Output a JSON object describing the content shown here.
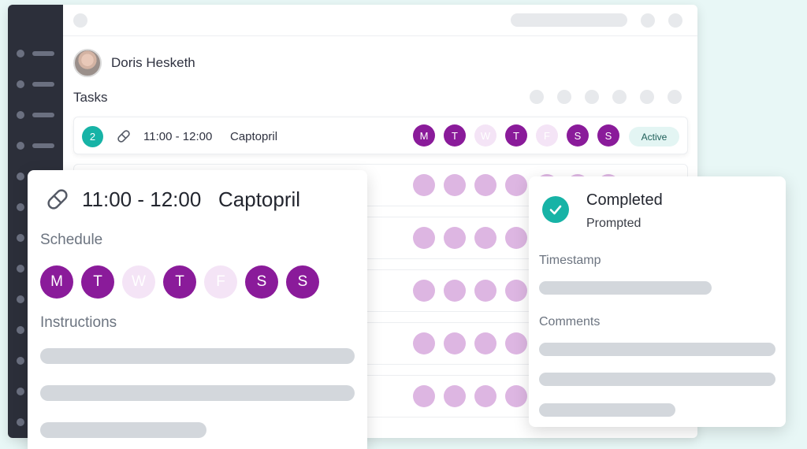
{
  "patient": {
    "name": "Doris Hesketh"
  },
  "tasks": {
    "title": "Tasks",
    "rows": [
      {
        "count": "2",
        "time": "11:00 - 12:00",
        "medication": "Captopril",
        "status": "Active",
        "days": [
          {
            "label": "M",
            "active": true
          },
          {
            "label": "T",
            "active": true
          },
          {
            "label": "W",
            "active": false
          },
          {
            "label": "T",
            "active": true
          },
          {
            "label": "F",
            "active": false
          },
          {
            "label": "S",
            "active": true
          },
          {
            "label": "S",
            "active": true
          }
        ]
      }
    ]
  },
  "detail": {
    "time": "11:00 - 12:00",
    "medication": "Captopril",
    "schedule_label": "Schedule",
    "instructions_label": "Instructions",
    "days": [
      {
        "label": "M",
        "active": true
      },
      {
        "label": "T",
        "active": true
      },
      {
        "label": "W",
        "active": false
      },
      {
        "label": "T",
        "active": true
      },
      {
        "label": "F",
        "active": false
      },
      {
        "label": "S",
        "active": true
      },
      {
        "label": "S",
        "active": true
      }
    ]
  },
  "status_card": {
    "status": "Completed",
    "sub_status": "Prompted",
    "timestamp_label": "Timestamp",
    "comments_label": "Comments"
  },
  "icons": {
    "pill": "pill-icon",
    "check": "check-icon"
  },
  "colors": {
    "accent": "#17b3a6",
    "day_active": "#8a1b9a",
    "day_inactive": "#f4e4f6",
    "sidebar": "#2c2f3a"
  }
}
